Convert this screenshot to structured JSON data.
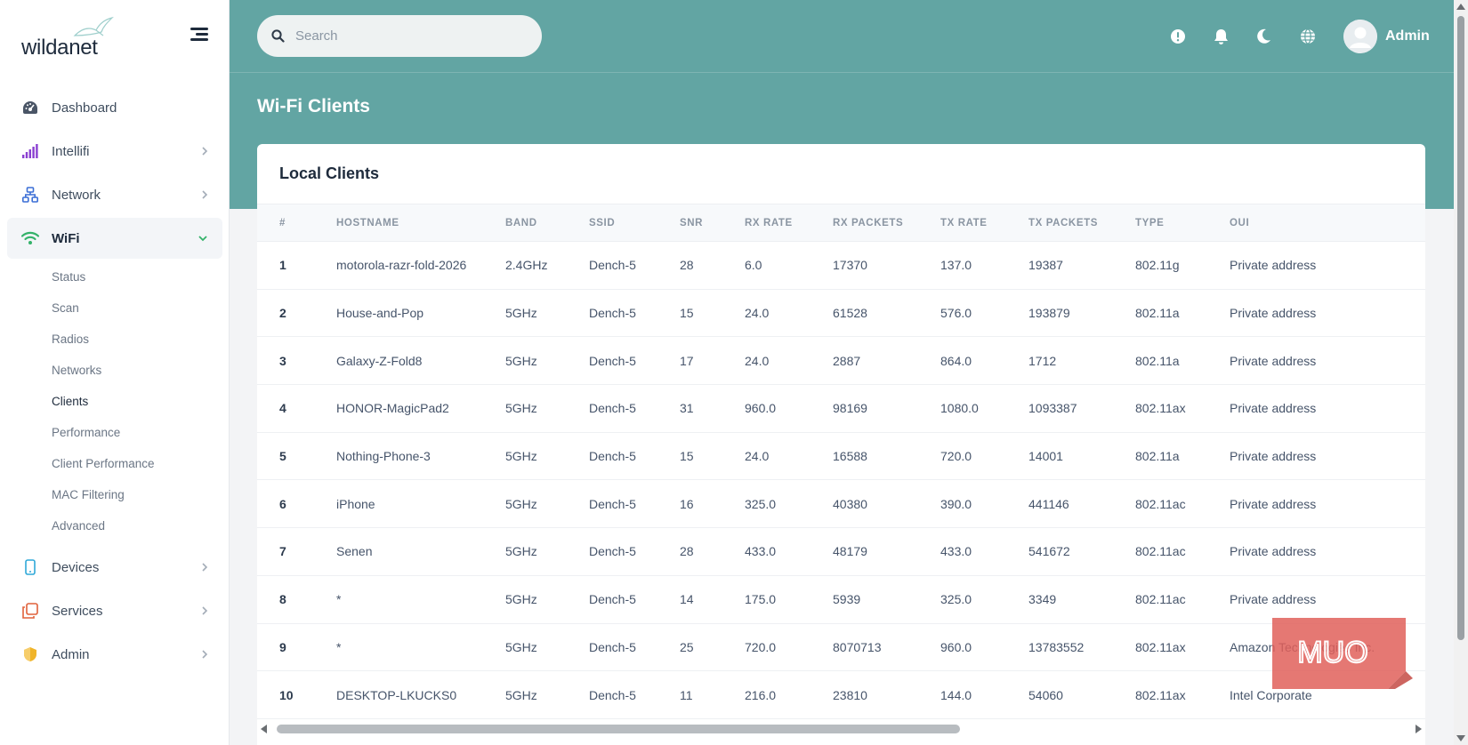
{
  "app": {
    "logo_text": "wildanet",
    "colors": {
      "band": "#62a5a3",
      "sidebar_bg": "#ffffff",
      "text_dark": "#1e2b3c",
      "watermark": "#e0605a"
    }
  },
  "sidebar": {
    "items": [
      {
        "label": "Dashboard",
        "icon": "gauge-icon",
        "color": "#3f4d5e",
        "has_chevron": false
      },
      {
        "label": "Intellifi",
        "icon": "signal-bars-icon",
        "color": "#8a3fd1",
        "has_chevron": true
      },
      {
        "label": "Network",
        "icon": "network-icon",
        "color": "#3b6fd6",
        "has_chevron": true
      },
      {
        "label": "WiFi",
        "icon": "wifi-icon",
        "color": "#34b26a",
        "has_chevron": true,
        "expanded": true
      }
    ],
    "wifi_sub": [
      "Status",
      "Scan",
      "Radios",
      "Networks",
      "Clients",
      "Performance",
      "Client Performance",
      "MAC Filtering",
      "Advanced"
    ],
    "wifi_sub_active": "Clients",
    "items_after": [
      {
        "label": "Devices",
        "icon": "phone-icon",
        "color": "#2fa8d8",
        "has_chevron": true
      },
      {
        "label": "Services",
        "icon": "layers-icon",
        "color": "#e0603a",
        "has_chevron": true
      },
      {
        "label": "Admin",
        "icon": "shield-icon",
        "color": "#f0b429",
        "has_chevron": true
      }
    ]
  },
  "header": {
    "search_placeholder": "Search",
    "icons": [
      "alert-icon",
      "bell-icon",
      "moon-icon",
      "globe-icon"
    ],
    "user_name": "Admin"
  },
  "page": {
    "title": "Wi-Fi Clients",
    "card_title": "Local Clients"
  },
  "table": {
    "columns": [
      "#",
      "HOSTNAME",
      "BAND",
      "SSID",
      "SNR",
      "RX RATE",
      "RX PACKETS",
      "TX RATE",
      "TX PACKETS",
      "TYPE",
      "OUI"
    ],
    "rows": [
      [
        "1",
        "motorola-razr-fold-2026",
        "2.4GHz",
        "Dench-5",
        "28",
        "6.0",
        "17370",
        "137.0",
        "19387",
        "802.11g",
        "Private address"
      ],
      [
        "2",
        "House-and-Pop",
        "5GHz",
        "Dench-5",
        "15",
        "24.0",
        "61528",
        "576.0",
        "193879",
        "802.11a",
        "Private address"
      ],
      [
        "3",
        "Galaxy-Z-Fold8",
        "5GHz",
        "Dench-5",
        "17",
        "24.0",
        "2887",
        "864.0",
        "1712",
        "802.11a",
        "Private address"
      ],
      [
        "4",
        "HONOR-MagicPad2",
        "5GHz",
        "Dench-5",
        "31",
        "960.0",
        "98169",
        "1080.0",
        "1093387",
        "802.11ax",
        "Private address"
      ],
      [
        "5",
        "Nothing-Phone-3",
        "5GHz",
        "Dench-5",
        "15",
        "24.0",
        "16588",
        "720.0",
        "14001",
        "802.11a",
        "Private address"
      ],
      [
        "6",
        "iPhone",
        "5GHz",
        "Dench-5",
        "16",
        "325.0",
        "40380",
        "390.0",
        "441146",
        "802.11ac",
        "Private address"
      ],
      [
        "7",
        "Senen",
        "5GHz",
        "Dench-5",
        "28",
        "433.0",
        "48179",
        "433.0",
        "541672",
        "802.11ac",
        "Private address"
      ],
      [
        "8",
        "*",
        "5GHz",
        "Dench-5",
        "14",
        "175.0",
        "5939",
        "325.0",
        "3349",
        "802.11ac",
        "Private address"
      ],
      [
        "9",
        "*",
        "5GHz",
        "Dench-5",
        "25",
        "720.0",
        "8070713",
        "960.0",
        "13783552",
        "802.11ax",
        "Amazon Technologies Inc."
      ],
      [
        "10",
        "DESKTOP-LKUCKS0",
        "5GHz",
        "Dench-5",
        "11",
        "216.0",
        "23810",
        "144.0",
        "54060",
        "802.11ax",
        "Intel Corporate"
      ]
    ]
  },
  "watermark": {
    "text": "MUO"
  }
}
